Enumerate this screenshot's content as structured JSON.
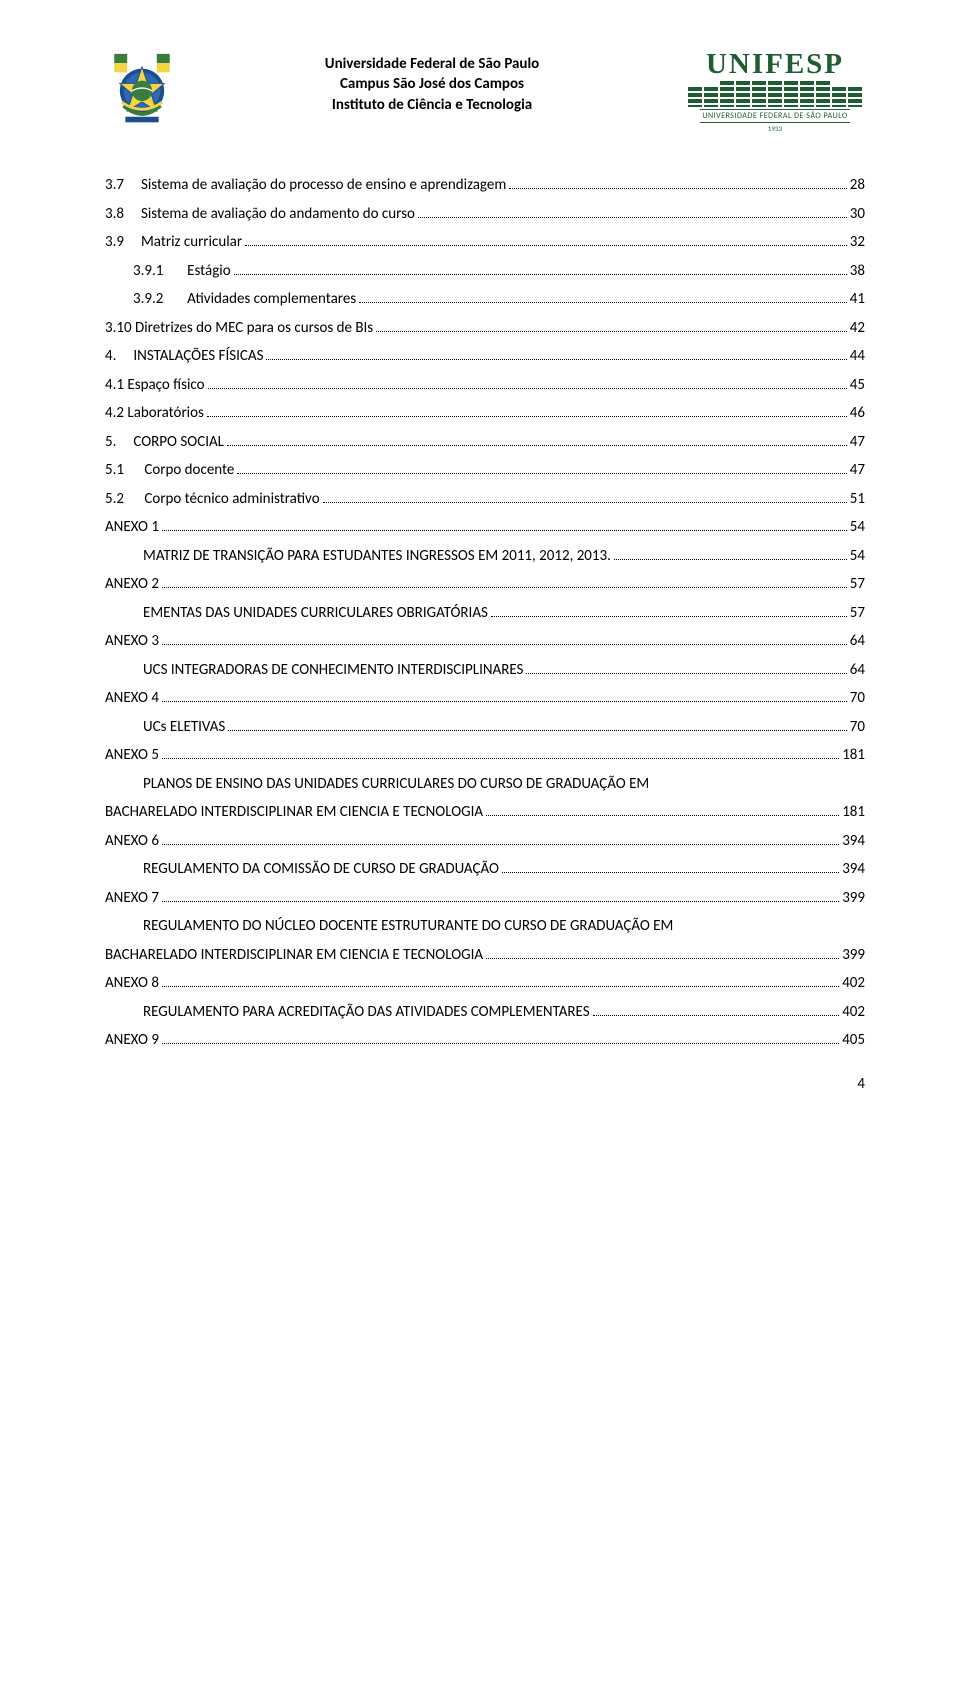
{
  "header": {
    "line1": "Universidade Federal de São Paulo",
    "line2": "Campus São José dos Campos",
    "line3": "Instituto de Ciência e Tecnologia",
    "logo_word": "UNIFESP",
    "logo_sub": "UNIVERSIDADE FEDERAL DE SÃO PAULO",
    "logo_year": "1933"
  },
  "toc": [
    {
      "num": "3.7",
      "gap": "     ",
      "text": "Sistema de avaliação do processo de ensino e aprendizagem",
      "page": "28",
      "indent": 0
    },
    {
      "num": "3.8",
      "gap": "     ",
      "text": "Sistema de avaliação do andamento do curso",
      "page": "30",
      "indent": 0
    },
    {
      "num": "3.9",
      "gap": "     ",
      "text": "Matriz curricular",
      "page": "32",
      "indent": 0
    },
    {
      "num": "3.9.1",
      "gap": "       ",
      "text": "Estágio",
      "page": "38",
      "indent": 1
    },
    {
      "num": "3.9.2",
      "gap": "       ",
      "text": "Atividades complementares",
      "page": "41",
      "indent": 1
    },
    {
      "num": "3.10",
      "gap": " ",
      "text": "Diretrizes do MEC para os cursos de BIs",
      "page": "42",
      "indent": 0
    },
    {
      "num": "4.",
      "gap": "     ",
      "text": "INSTALAÇÕES FÍSICAS",
      "page": "44",
      "indent": 0
    },
    {
      "num": "4.1",
      "gap": " ",
      "text": "Espaço físico",
      "page": "45",
      "indent": 0
    },
    {
      "num": "4.2",
      "gap": " ",
      "text": "Laboratórios",
      "page": "46",
      "indent": 0
    },
    {
      "num": "5.",
      "gap": "     ",
      "text": "CORPO SOCIAL",
      "page": "47",
      "indent": 0
    },
    {
      "num": "5.1",
      "gap": "      ",
      "text": "Corpo docente",
      "page": "47",
      "indent": 0
    },
    {
      "num": "5.2",
      "gap": "      ",
      "text": "Corpo técnico administrativo",
      "page": "51",
      "indent": 0
    },
    {
      "num": "ANEXO 1",
      "gap": "",
      "text": "",
      "page": "54",
      "indent": 0
    },
    {
      "num": "",
      "gap": "",
      "text": "MATRIZ DE TRANSIÇÃO PARA ESTUDANTES INGRESSOS EM 2011, 2012, 2013. ",
      "page": "54",
      "indent": 2
    },
    {
      "num": "ANEXO 2",
      "gap": "",
      "text": "",
      "page": "57",
      "indent": 0
    },
    {
      "num": "",
      "gap": "",
      "text": "EMENTAS DAS UNIDADES CURRICULARES OBRIGATÓRIAS",
      "page": "57",
      "indent": 2
    },
    {
      "num": "ANEXO 3",
      "gap": "",
      "text": "",
      "page": "64",
      "indent": 0
    },
    {
      "num": "",
      "gap": "",
      "text": "UCS INTEGRADORAS DE CONHECIMENTO  INTERDISCIPLINARES",
      "page": "64",
      "indent": 2
    },
    {
      "num": "ANEXO 4",
      "gap": "",
      "text": "",
      "page": "70",
      "indent": 0
    },
    {
      "num": "",
      "gap": "",
      "text": "UCs ELETIVAS",
      "page": "70",
      "indent": 2
    },
    {
      "num": "ANEXO 5",
      "gap": "",
      "text": "",
      "page": "181",
      "indent": 0
    },
    {
      "num": "",
      "gap": "",
      "text": "PLANOS DE ENSINO DAS UNIDADES CURRICULARES DO CURSO DE GRADUAÇÃO EM",
      "page": "",
      "indent": 2,
      "noleader": true
    },
    {
      "num": "",
      "gap": "",
      "text": "BACHARELADO INTERDISCIPLINAR EM CIENCIA E TECNOLOGIA",
      "page": "181",
      "indent": 0
    },
    {
      "num": "ANEXO 6",
      "gap": "",
      "text": "",
      "page": "394",
      "indent": 0
    },
    {
      "num": "",
      "gap": "",
      "text": "REGULAMENTO DA COMISSÃO DE CURSO DE GRADUAÇÃO",
      "page": "394",
      "indent": 2
    },
    {
      "num": "ANEXO 7",
      "gap": "",
      "text": "",
      "page": "399",
      "indent": 0
    },
    {
      "num": "",
      "gap": "",
      "text": "REGULAMENTO DO NÚCLEO DOCENTE ESTRUTURANTE DO CURSO DE GRADUAÇÃO EM",
      "page": "",
      "indent": 2,
      "noleader": true
    },
    {
      "num": "",
      "gap": "",
      "text": "BACHARELADO INTERDISCIPLINAR EM CIENCIA E TECNOLOGIA",
      "page": "399",
      "indent": 0
    },
    {
      "num": "ANEXO 8",
      "gap": "",
      "text": "",
      "page": "402",
      "indent": 0
    },
    {
      "num": "",
      "gap": "",
      "text": "REGULAMENTO PARA ACREDITAÇÃO DAS ATIVIDADES COMPLEMENTARES",
      "page": "402",
      "indent": 2
    },
    {
      "num": "ANEXO 9",
      "gap": "",
      "text": "",
      "page": "405",
      "indent": 0
    }
  ],
  "page_number": "4"
}
